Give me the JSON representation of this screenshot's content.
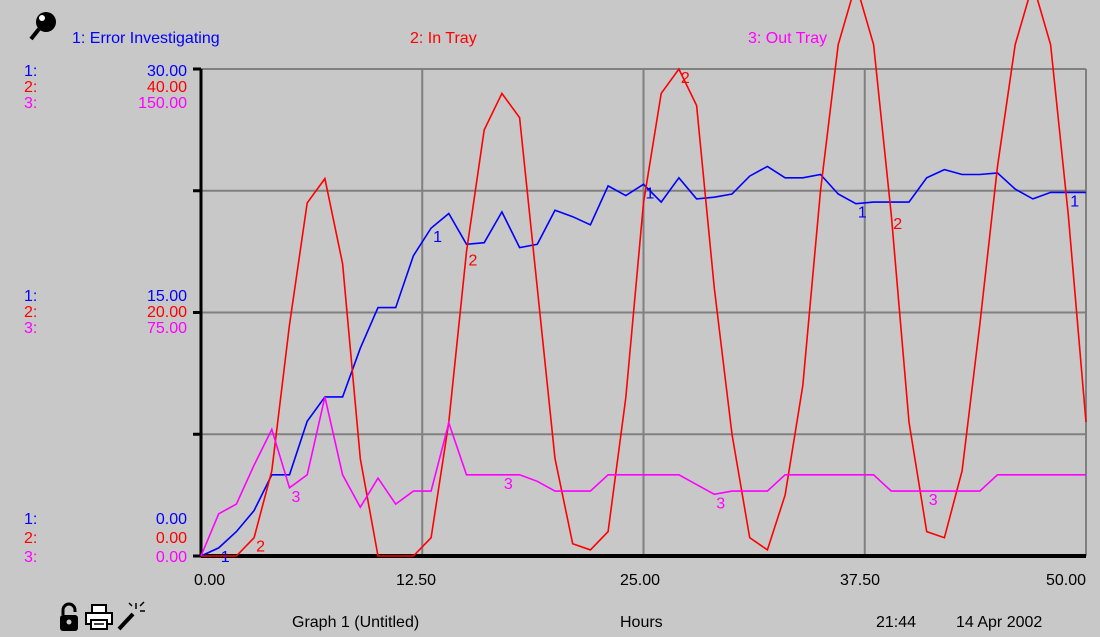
{
  "colors": {
    "series1": "#0000ff",
    "series2": "#ff0000",
    "series3": "#ff00ff",
    "background": "#c8c8c8",
    "grid": "#808080",
    "axis": "#000000"
  },
  "icons": {
    "top_left": "magnifier-pin-icon",
    "footer": [
      "padlock-icon",
      "printer-icon",
      "magic-wand-icon"
    ]
  },
  "footer": {
    "graph_title": "Graph 1 (Untitled)",
    "x_unit": "Hours",
    "time": "21:44",
    "date": "14 Apr 2002"
  },
  "chart_data": {
    "type": "line",
    "xlabel": "Hours",
    "xlim": [
      0,
      50
    ],
    "x_ticks": [
      "0.00",
      "12.50",
      "25.00",
      "37.50",
      "50.00"
    ],
    "legend": [
      {
        "num": "1:",
        "label": "1: Error Investigating"
      },
      {
        "num": "2:",
        "label": "2: In Tray"
      },
      {
        "num": "3:",
        "label": "3: Out Tray"
      }
    ],
    "y_scales": [
      {
        "top": "30.00",
        "mid": "15.00",
        "bottom": "0.00",
        "ylim": [
          0,
          30
        ]
      },
      {
        "top": "40.00",
        "mid": "20.00",
        "bottom": "0.00",
        "ylim": [
          0,
          40
        ]
      },
      {
        "top": "150.00",
        "mid": "75.00",
        "bottom": "0.00",
        "ylim": [
          0,
          150
        ]
      }
    ],
    "series": [
      {
        "name": "Error Investigating",
        "marker": "1",
        "x": [
          0,
          1,
          2,
          3,
          4,
          5,
          6,
          7,
          8,
          9,
          10,
          11,
          12,
          13,
          14,
          15,
          16,
          17,
          18,
          19,
          20,
          21,
          22,
          23,
          24,
          25,
          26,
          27,
          28,
          29,
          30,
          31,
          32,
          33,
          34,
          35,
          36,
          37,
          38,
          39,
          40,
          41,
          42,
          43,
          44,
          45,
          46,
          47,
          48,
          49,
          50
        ],
        "y": [
          0,
          0.5,
          1.5,
          2.8,
          5.0,
          5.0,
          8.3,
          9.8,
          9.8,
          12.8,
          15.3,
          15.3,
          18.5,
          20.2,
          21.1,
          19.2,
          19.3,
          21.2,
          19.0,
          19.2,
          21.3,
          20.9,
          20.4,
          22.8,
          22.2,
          22.9,
          21.8,
          23.3,
          22.0,
          22.1,
          22.3,
          23.4,
          24.0,
          23.3,
          23.3,
          23.5,
          22.3,
          21.7,
          21.8,
          21.8,
          21.8,
          23.3,
          23.8,
          23.5,
          23.5,
          23.6,
          22.6,
          22.0,
          22.4,
          22.4,
          22.4
        ]
      },
      {
        "name": "In Tray",
        "marker": "2",
        "x": [
          0,
          1,
          2,
          3,
          4,
          5,
          6,
          7,
          8,
          9,
          10,
          11,
          12,
          13,
          14,
          15,
          16,
          17,
          18,
          19,
          20,
          21,
          22,
          23,
          24,
          25,
          26,
          27,
          28,
          29,
          30,
          31,
          32,
          33,
          34,
          35,
          36,
          37,
          38,
          39,
          40,
          41,
          42,
          43,
          44,
          45,
          46,
          47,
          48,
          49,
          50
        ],
        "y": [
          0,
          0,
          0,
          1.5,
          7,
          19,
          29,
          31,
          24,
          8,
          0,
          0,
          0,
          1.5,
          11,
          25,
          35,
          38,
          36,
          22,
          8,
          1,
          0.5,
          2,
          13,
          29,
          38,
          40,
          37,
          22,
          10,
          1.5,
          0.5,
          5,
          14,
          30,
          42,
          47,
          42,
          28,
          11,
          2,
          1.5,
          7,
          19,
          32,
          42,
          47,
          42,
          28,
          11
        ]
      },
      {
        "name": "Out Tray",
        "marker": "3",
        "x": [
          0,
          1,
          2,
          3,
          4,
          5,
          6,
          7,
          8,
          9,
          10,
          11,
          12,
          13,
          14,
          15,
          16,
          17,
          18,
          19,
          20,
          21,
          22,
          23,
          24,
          25,
          26,
          27,
          28,
          29,
          30,
          31,
          32,
          33,
          34,
          35,
          36,
          37,
          38,
          39,
          40,
          41,
          42,
          43,
          44,
          45,
          46,
          47,
          48,
          49,
          50
        ],
        "y": [
          0,
          13,
          16,
          28,
          39,
          21,
          25,
          49,
          25,
          15,
          24,
          16,
          20,
          20,
          41,
          25,
          25,
          25,
          25,
          23,
          20,
          20,
          20,
          25,
          25,
          25,
          25,
          25,
          22,
          19,
          20,
          20,
          20,
          25,
          25,
          25,
          25,
          25,
          25,
          20,
          20,
          20,
          20,
          20,
          20,
          25,
          25,
          25,
          25,
          25,
          25
        ]
      }
    ]
  }
}
